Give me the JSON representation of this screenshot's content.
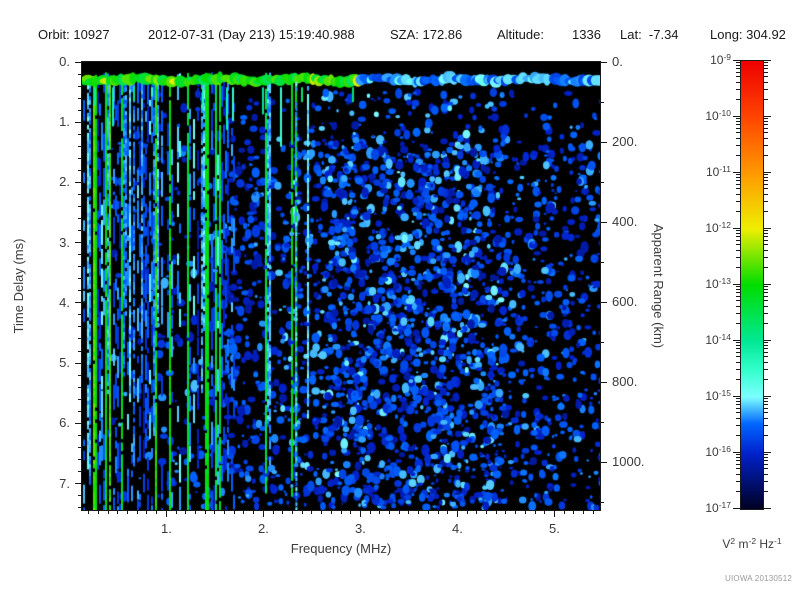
{
  "header": {
    "orbit": "Orbit: 10927",
    "datetime": "2012-07-31 (Day 213) 15:19:40.988",
    "sza": "SZA: 172.86",
    "altitude_label": "Altitude:",
    "altitude_value": "1336",
    "lat": "Lat:  -7.34",
    "long": "Long: 304.92"
  },
  "chart_data": {
    "type": "heatmap",
    "subtype": "radar-sounder-spectrogram",
    "grid": false,
    "background": "#000000",
    "x_axis": {
      "label": "Frequency (MHz)",
      "range": [
        0.13,
        5.47
      ],
      "major_ticks": [
        1,
        2,
        3,
        4,
        5
      ],
      "major_tick_labels": [
        "1.",
        "2.",
        "3.",
        "4.",
        "5."
      ],
      "minor_step": 0.1
    },
    "y_axis_left": {
      "label": "Time Delay (ms)",
      "range": [
        0,
        7.44
      ],
      "major_ticks": [
        0,
        1,
        2,
        3,
        4,
        5,
        6,
        7
      ],
      "major_tick_labels": [
        "0.",
        "1.",
        "2.",
        "3.",
        "4.",
        "5.",
        "6.",
        "7."
      ],
      "minor_step": 0.2,
      "direction": "down"
    },
    "y_axis_right": {
      "label": "Apparent Range (km)",
      "range": [
        0,
        1120
      ],
      "major_ticks": [
        0,
        200,
        400,
        600,
        800,
        1000
      ],
      "major_tick_labels": [
        "0.",
        "200.",
        "400.",
        "600.",
        "800.",
        "1000."
      ],
      "minor_step": 100,
      "direction": "down"
    },
    "colorbar": {
      "unit_parts": [
        {
          "t": "V"
        },
        {
          "s": "2"
        },
        {
          "t": " m"
        },
        {
          "s": "-2"
        },
        {
          "t": " Hz"
        },
        {
          "s": "-1"
        }
      ],
      "decade_exponents": [
        -9,
        -10,
        -11,
        -12,
        -13,
        -14,
        -15,
        -16,
        -17
      ],
      "scale": "log",
      "stops": [
        {
          "v": 0.0,
          "c": "#000022"
        },
        {
          "v": 0.125,
          "c": "#0022cc"
        },
        {
          "v": 0.19,
          "c": "#0066ff"
        },
        {
          "v": 0.25,
          "c": "#7dffff"
        },
        {
          "v": 0.31,
          "c": "#33ffcc"
        },
        {
          "v": 0.375,
          "c": "#00e894"
        },
        {
          "v": 0.5,
          "c": "#00dd00"
        },
        {
          "v": 0.625,
          "c": "#eeee00"
        },
        {
          "v": 0.75,
          "c": "#ff9900"
        },
        {
          "v": 0.875,
          "c": "#ff4400"
        },
        {
          "v": 1.0,
          "c": "#ee0000"
        }
      ]
    },
    "features": {
      "surface_echo_band": {
        "delay_ms_start": 0.17,
        "delay_ms_end": 0.42,
        "green_freq_max_mhz": 3.0,
        "desc": "bright horizontal echo band across all frequencies near zero delay; green/yellow-green below 3 MHz, cyan-blue above"
      },
      "plasma_oscillation_stripes": {
        "freq_max_mhz": 2.8,
        "dense_freq_max_mhz": 1.7,
        "desc": "vertical green/cyan/blue stripes spanning full delay range at low frequencies"
      },
      "diffuse_echo_field": {
        "freq_min_mhz": 0.9,
        "freq_dense_min_mhz": 2.6,
        "freq_dense_max_mhz": 4.5,
        "desc": "speckled faint blue noise blobs on black, densest 2.6-4.5 MHz, sparser toward 5.5 MHz"
      },
      "interference_line_mhz": 2.33,
      "intensity_range_exponents": [
        -17,
        -9
      ]
    }
  },
  "footer": {
    "watermark": "UIOWA 20130512"
  }
}
